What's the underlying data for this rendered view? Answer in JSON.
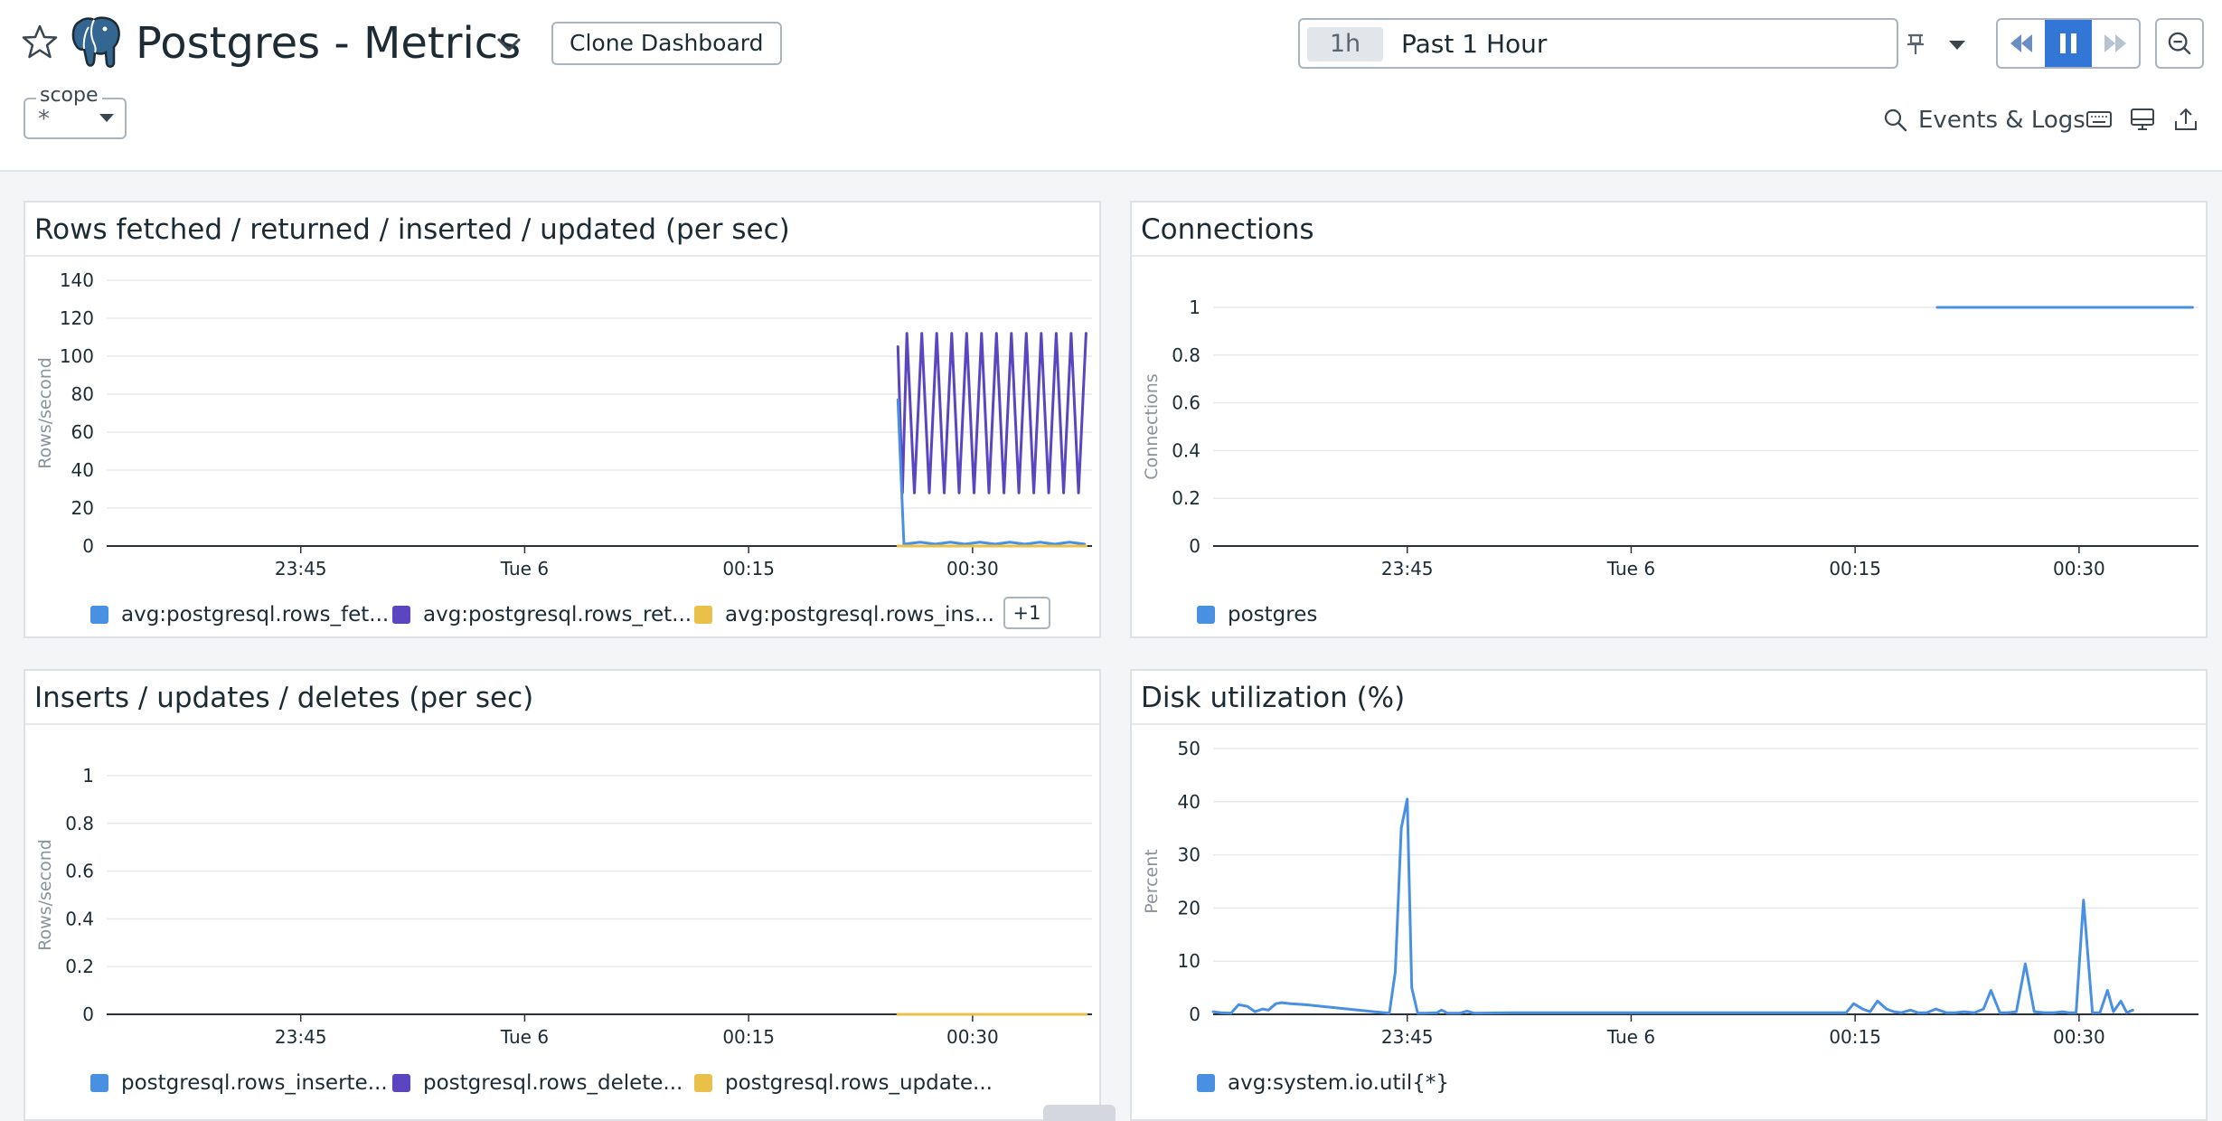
{
  "header": {
    "title": "Postgres - Metrics",
    "clone_label": "Clone Dashboard",
    "scope_label": "scope",
    "scope_value": "*",
    "time_chip": "1h",
    "time_label": "Past 1 Hour",
    "events_label": "Events & Logs"
  },
  "widgets": {
    "rows": {
      "title": "Rows fetched / returned / inserted / updated (per sec)",
      "legend": [
        "avg:postgresql.rows_fet...",
        "avg:postgresql.rows_ret...",
        "avg:postgresql.rows_ins..."
      ],
      "legend_more": "+1"
    },
    "connections": {
      "title": "Connections",
      "legend": [
        "postgres"
      ]
    },
    "iud": {
      "title": "Inserts / updates / deletes (per sec)",
      "legend": [
        "postgresql.rows_inserte...",
        "postgresql.rows_delete...",
        "postgresql.rows_update..."
      ]
    },
    "disk": {
      "title": "Disk utilization (%)",
      "legend": [
        "avg:system.io.util{*}"
      ]
    }
  },
  "colors": {
    "blue": "#4a90e2",
    "purple": "#5b45c0",
    "yellow": "#e9c14a",
    "accent": "#3277d5"
  },
  "chart_data": [
    {
      "type": "line",
      "title": "Rows fetched / returned / inserted / updated (per sec)",
      "ylabel": "Rows/second",
      "ylim": [
        0,
        140
      ],
      "yticks": [
        0,
        20,
        40,
        60,
        80,
        100,
        120,
        140
      ],
      "xlim": [
        0,
        66
      ],
      "xticks": [
        {
          "x": 13,
          "label": "23:45"
        },
        {
          "x": 28,
          "label": "Tue 6"
        },
        {
          "x": 43,
          "label": "00:15"
        },
        {
          "x": 58,
          "label": "00:30"
        }
      ],
      "series": [
        {
          "name": "avg:postgresql.rows_returned",
          "color": "#5b45c0",
          "x": [
            53.0,
            53.3,
            53.6,
            54.1,
            54.6,
            55.1,
            55.6,
            56.1,
            56.6,
            57.1,
            57.6,
            58.1,
            58.6,
            59.1,
            59.6,
            60.1,
            60.6,
            61.1,
            61.6,
            62.1,
            62.6,
            63.1,
            63.6,
            64.1,
            64.6,
            65.1,
            65.6
          ],
          "y": [
            105,
            28,
            112,
            28,
            112,
            28,
            112,
            28,
            112,
            28,
            112,
            28,
            112,
            28,
            112,
            28,
            112,
            28,
            112,
            28,
            112,
            28,
            112,
            28,
            112,
            28,
            112
          ]
        },
        {
          "name": "avg:postgresql.rows_fetched",
          "color": "#4a90e2",
          "x": [
            53.0,
            53.4,
            54.5,
            55.5,
            56.5,
            57.5,
            58.5,
            59.5,
            60.5,
            61.5,
            62.5,
            63.5,
            64.5,
            65.5
          ],
          "y": [
            77,
            1,
            2,
            1,
            2,
            1,
            2,
            1,
            2,
            1,
            2,
            1,
            2,
            1
          ]
        },
        {
          "name": "avg:postgresql.rows_inserted",
          "color": "#e9c14a",
          "x": [
            53.0,
            65.6
          ],
          "y": [
            0,
            0
          ]
        }
      ]
    },
    {
      "type": "line",
      "title": "Connections",
      "ylabel": "Connections",
      "ylim": [
        0,
        1
      ],
      "yticks": [
        0,
        0.2,
        0.4,
        0.6,
        0.8,
        1
      ],
      "xlim": [
        0,
        66
      ],
      "xticks": [
        {
          "x": 13,
          "label": "23:45"
        },
        {
          "x": 28,
          "label": "Tue 6"
        },
        {
          "x": 43,
          "label": "00:15"
        },
        {
          "x": 58,
          "label": "00:30"
        }
      ],
      "series": [
        {
          "name": "postgres",
          "color": "#4a90e2",
          "x": [
            48.5,
            65.6
          ],
          "y": [
            1,
            1
          ]
        }
      ]
    },
    {
      "type": "line",
      "title": "Inserts / updates / deletes (per sec)",
      "ylabel": "Rows/second",
      "ylim": [
        0,
        1
      ],
      "yticks": [
        0,
        0.2,
        0.4,
        0.6,
        0.8,
        1
      ],
      "xlim": [
        0,
        66
      ],
      "xticks": [
        {
          "x": 13,
          "label": "23:45"
        },
        {
          "x": 28,
          "label": "Tue 6"
        },
        {
          "x": 43,
          "label": "00:15"
        },
        {
          "x": 58,
          "label": "00:30"
        }
      ],
      "series": [
        {
          "name": "postgresql.rows_inserted",
          "color": "#4a90e2",
          "x": [
            53.0,
            65.6
          ],
          "y": [
            0,
            0
          ]
        },
        {
          "name": "postgresql.rows_deleted",
          "color": "#5b45c0",
          "x": [
            53.0,
            65.6
          ],
          "y": [
            0,
            0
          ]
        },
        {
          "name": "postgresql.rows_updated",
          "color": "#e9c14a",
          "x": [
            53.0,
            65.6
          ],
          "y": [
            0,
            0
          ]
        }
      ]
    },
    {
      "type": "line",
      "title": "Disk utilization (%)",
      "ylabel": "Percent",
      "ylim": [
        0,
        50
      ],
      "yticks": [
        0,
        10,
        20,
        30,
        40,
        50
      ],
      "xlim": [
        0,
        66
      ],
      "xticks": [
        {
          "x": 13,
          "label": "23:45"
        },
        {
          "x": 28,
          "label": "Tue 6"
        },
        {
          "x": 43,
          "label": "00:15"
        },
        {
          "x": 58,
          "label": "00:30"
        }
      ],
      "series": [
        {
          "name": "avg:system.io.util{*}",
          "color": "#4a90e2",
          "x": [
            0.0,
            0.5,
            1.2,
            1.7,
            2.3,
            2.8,
            3.3,
            3.7,
            4.2,
            4.6,
            5.2,
            6.2,
            11.8,
            12.2,
            12.6,
            13.0,
            13.3,
            13.7,
            14.2,
            15.0,
            15.3,
            15.7,
            16.5,
            17.0,
            17.5,
            20.0,
            25.0,
            30.0,
            35.0,
            40.0,
            42.4,
            42.9,
            43.5,
            44.0,
            44.5,
            45.1,
            45.6,
            46.1,
            46.7,
            47.2,
            47.8,
            48.4,
            49.1,
            49.7,
            50.3,
            51.0,
            51.6,
            52.1,
            52.7,
            53.2,
            53.8,
            54.4,
            55.0,
            55.7,
            56.3,
            56.9,
            57.3,
            57.8,
            58.3,
            58.9,
            59.4,
            59.9,
            60.3,
            60.8,
            61.2,
            61.6
          ],
          "y": [
            0.5,
            0.3,
            0.2,
            1.8,
            1.5,
            0.5,
            1.0,
            0.8,
            2.0,
            2.2,
            2.0,
            1.8,
            0.2,
            8.0,
            35.0,
            40.5,
            5.0,
            0.2,
            0.2,
            0.3,
            0.8,
            0.2,
            0.2,
            0.6,
            0.2,
            0.3,
            0.3,
            0.3,
            0.3,
            0.3,
            0.3,
            2.0,
            1.0,
            0.5,
            2.5,
            1.0,
            0.5,
            0.3,
            0.8,
            0.3,
            0.3,
            1.0,
            0.3,
            0.3,
            0.5,
            0.3,
            1.0,
            4.5,
            0.3,
            0.3,
            0.5,
            9.5,
            0.5,
            0.3,
            0.3,
            0.5,
            0.3,
            0.3,
            21.5,
            0.3,
            0.3,
            4.5,
            0.5,
            2.5,
            0.3,
            0.8
          ]
        }
      ]
    }
  ]
}
